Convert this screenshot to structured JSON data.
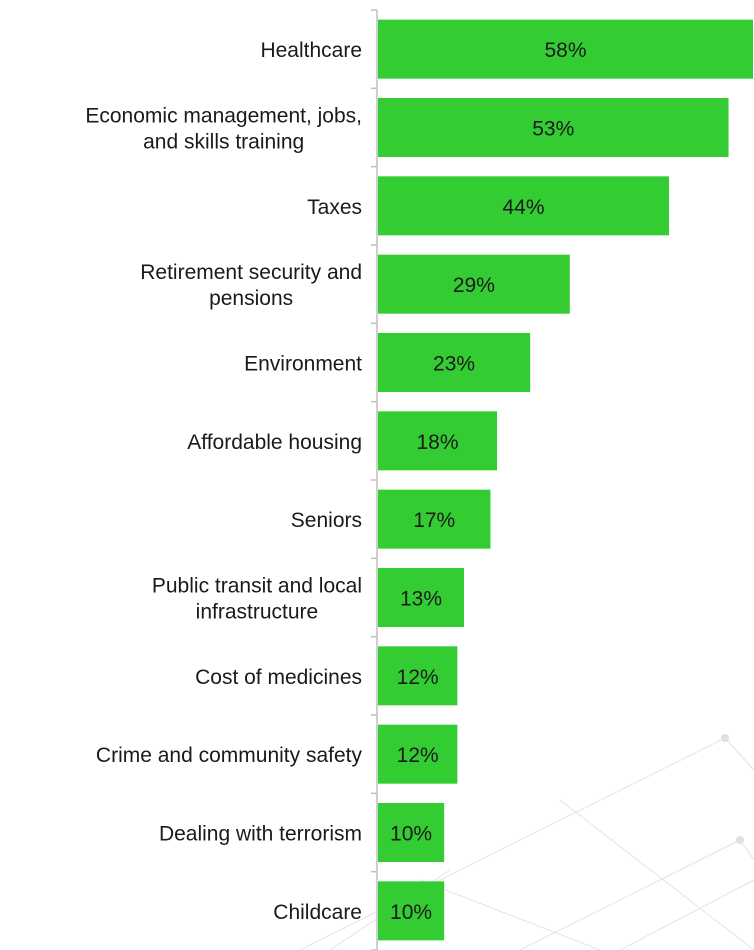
{
  "chart_data": {
    "type": "bar",
    "orientation": "horizontal",
    "categories": [
      [
        "Healthcare"
      ],
      [
        "Economic management, jobs,",
        "and skills training"
      ],
      [
        "Taxes"
      ],
      [
        "Retirement security and",
        "pensions"
      ],
      [
        "Environment"
      ],
      [
        "Affordable housing"
      ],
      [
        "Seniors"
      ],
      [
        "Public transit and local",
        "infrastructure"
      ],
      [
        "Cost of medicines"
      ],
      [
        "Crime and community safety"
      ],
      [
        "Dealing with terrorism"
      ],
      [
        "Childcare"
      ]
    ],
    "values": [
      58,
      53,
      44,
      29,
      23,
      18,
      17,
      13,
      12,
      12,
      10,
      10
    ],
    "value_labels": [
      "58%",
      "53%",
      "44%",
      "29%",
      "23%",
      "18%",
      "17%",
      "13%",
      "12%",
      "12%",
      "10%",
      "10%"
    ],
    "xlim": [
      0,
      57
    ],
    "title": "",
    "xlabel": "",
    "ylabel": "",
    "grid": false,
    "legend": "none"
  },
  "colors": {
    "bar": "#33cc33",
    "axis": "#bfbfbf",
    "text": "#1a1a1a",
    "pattern": "#d9d9d9"
  }
}
